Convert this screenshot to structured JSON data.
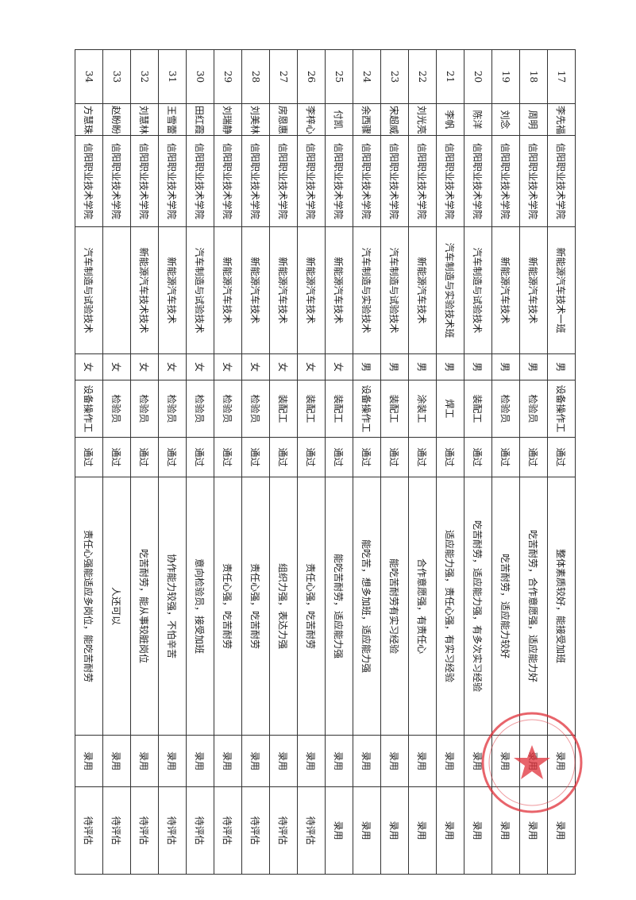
{
  "table": {
    "rows": [
      [
        "17",
        "李先福",
        "信阳职业技术学院",
        "新能源汽车技术一班",
        "男",
        "设备操作工",
        "通过",
        "整体素质较好，能接受加班",
        "录用",
        "录用"
      ],
      [
        "18",
        "周明",
        "信阳职业技术学院",
        "新能源汽车技术",
        "男",
        "检验员",
        "通过",
        "吃苦耐劳，合作意愿强，适应能力好",
        "录用",
        "录用"
      ],
      [
        "19",
        "刘念",
        "信阳职业技术学院",
        "新能源汽车技术",
        "男",
        "检验员",
        "通过",
        "吃苦耐劳，适应能力较好",
        "录用",
        "录用"
      ],
      [
        "20",
        "陈洋",
        "信阳职业技术学院",
        "汽车制造与试验技术",
        "男",
        "装配工",
        "通过",
        "吃苦耐劳，适应能力强，有多次实习经验",
        "录用",
        "录用"
      ],
      [
        "21",
        "李帆",
        "信阳职业技术学院",
        "汽车制造与实验技术班",
        "男",
        "焊工",
        "通过",
        "适应能力强，责任心强，有实习经验",
        "录用",
        "录用"
      ],
      [
        "22",
        "刘光亮",
        "信阳职业技术学院",
        "新能源汽车技术",
        "男",
        "涂装工",
        "通过",
        "合作意愿强，有责任心",
        "录用",
        "录用"
      ],
      [
        "23",
        "宋超威",
        "信阳职业技术学院",
        "汽车制造与试验技术",
        "男",
        "装配工",
        "通过",
        "能吃苦耐劳有实习经验",
        "录用",
        "录用"
      ],
      [
        "24",
        "余西骤",
        "信阳职业技术学院",
        "汽车制造与实验技术",
        "男",
        "设备操作工",
        "通过",
        "能吃苦，想多加班，适应能力强",
        "录用",
        "录用"
      ],
      [
        "25",
        "付凯",
        "信阳职业技术学院",
        "新能源汽车技术",
        "女",
        "装配工",
        "通过",
        "能吃苦耐劳，适应能力强",
        "录用",
        "录用"
      ],
      [
        "26",
        "李梓心",
        "信阳职业技术学院",
        "新能源汽车技术",
        "女",
        "装配工",
        "通过",
        "责任心强，吃苦耐劳",
        "录用",
        "待评估"
      ],
      [
        "27",
        "房恩惠",
        "信阳职业技术学院",
        "新能源汽车技术",
        "女",
        "装配工",
        "通过",
        "组织力强，表达力强",
        "录用",
        "待评估"
      ],
      [
        "28",
        "刘美林",
        "信阳职业技术学院",
        "新能源汽车技术",
        "女",
        "检验员",
        "通过",
        "责任心强，吃苦耐劳",
        "录用",
        "待评估"
      ],
      [
        "29",
        "刘瑞静",
        "信阳职业技术学院",
        "新能源汽车技术",
        "女",
        "检验员",
        "通过",
        "责任心强，吃苦耐劳",
        "录用",
        "待评估"
      ],
      [
        "30",
        "田红霞",
        "信阳职业技术学院",
        "汽车制造与试验技术",
        "女",
        "检验员",
        "通过",
        "意向检验员，接受加班",
        "录用",
        "待评估"
      ],
      [
        "31",
        "王雪蕾",
        "信阳职业技术学院",
        "新能源汽车技术",
        "女",
        "检验员",
        "通过",
        "协作能力较强，不怕辛苦",
        "录用",
        "待评估"
      ],
      [
        "32",
        "刘慧林",
        "信阳职业技术学院",
        "新能源汽车技术技术",
        "女",
        "检验员",
        "通过",
        "吃苦耐劳，能从事较脏岗位",
        "录用",
        "待评估"
      ],
      [
        "33",
        "赵盼盼",
        "信阳职业技术学院",
        null,
        "女",
        "检验员",
        "通过",
        "人还可以",
        "录用",
        "待评估"
      ],
      [
        "34",
        "方慧珠",
        "信阳职业技术学院",
        "汽车制造与试验技术",
        "女",
        "设备操作工",
        "通过",
        "责任心强能适应多岗位，能吃苦耐劳",
        "录用",
        "待评估"
      ]
    ]
  }
}
